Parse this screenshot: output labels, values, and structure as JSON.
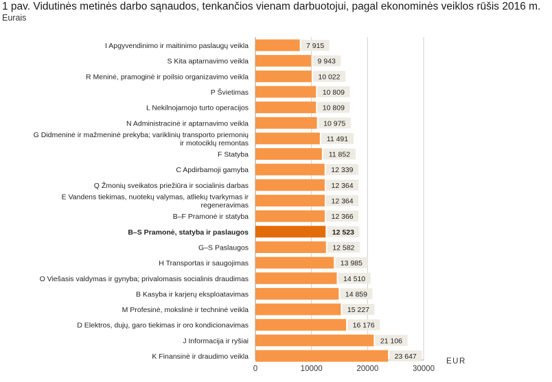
{
  "title": "1 pav. Vidutinės metinės darbo sąnaudos, tenkančios vienam darbuotojui, pagal ekonominės veiklos rūšis 2016 m.",
  "subtitle": "Eurais",
  "colors": {
    "bar": "#f79646",
    "highlight_bar": "#e36c0a",
    "label_box": "#eeebe3",
    "grid": "#cfcfcf"
  },
  "chart_data": {
    "type": "bar",
    "orientation": "horizontal",
    "categories": [
      [
        "I Apgyvendinimo ir maitinimo paslaugų veikla"
      ],
      [
        "S Kita aptarnavimo veikla"
      ],
      [
        "R Meninė, pramoginė ir poilsio organizavimo veikla"
      ],
      [
        "P Švietimas"
      ],
      [
        "L Nekilnojamojo turto operacijos"
      ],
      [
        "N Administracinė ir aptarnavimo veikla"
      ],
      [
        "G Didmeninė ir mažmeninė prekyba; variklinių transporto priemonių",
        "ir motociklų remontas"
      ],
      [
        "F Statyba"
      ],
      [
        "C Apdirbamoji gamyba"
      ],
      [
        "Q Žmonių sveikatos priežiūra ir socialinis darbas"
      ],
      [
        "E Vandens tiekimas, nuotekų valymas, atliekų tvarkymas ir",
        "regeneravimas"
      ],
      [
        "B–F Pramonė ir statyba"
      ],
      [
        "B–S Pramonė, statyba ir paslaugos"
      ],
      [
        "G–S Paslaugos"
      ],
      [
        "H Transportas ir saugojimas"
      ],
      [
        "O Viešasis valdymas ir gynyba; privalomasis socialinis draudimas"
      ],
      [
        "B Kasyba ir karjerų eksploatavimas"
      ],
      [
        "M Profesinė, mokslinė ir techninė veikla"
      ],
      [
        "D Elektros, dujų, garo tiekimas ir oro kondicionavimas"
      ],
      [
        "J Informacija ir ryšiai"
      ],
      [
        "K Finansinė ir draudimo veikla"
      ]
    ],
    "values": [
      7915,
      9943,
      10022,
      10809,
      10809,
      10975,
      11491,
      11852,
      12339,
      12364,
      12364,
      12366,
      12523,
      12582,
      13985,
      14510,
      14859,
      15227,
      16176,
      21106,
      23647
    ],
    "value_labels": [
      "7 915",
      "9 943",
      "10 022",
      "10 809",
      "10 809",
      "10 975",
      "11 491",
      "11 852",
      "12 339",
      "12 364",
      "12 364",
      "12 366",
      "12 523",
      "12 582",
      "13 985",
      "14 510",
      "14 859",
      "15 227",
      "16 176",
      "21 106",
      "23 647"
    ],
    "highlight_index": 12,
    "xlim": [
      0,
      30000
    ],
    "xticks": [
      0,
      10000,
      20000,
      30000
    ],
    "xtick_labels": [
      "0",
      "10000",
      "20000",
      "30000"
    ],
    "xlabel": "EUR",
    "ylabel": "",
    "grid": "vertical"
  }
}
